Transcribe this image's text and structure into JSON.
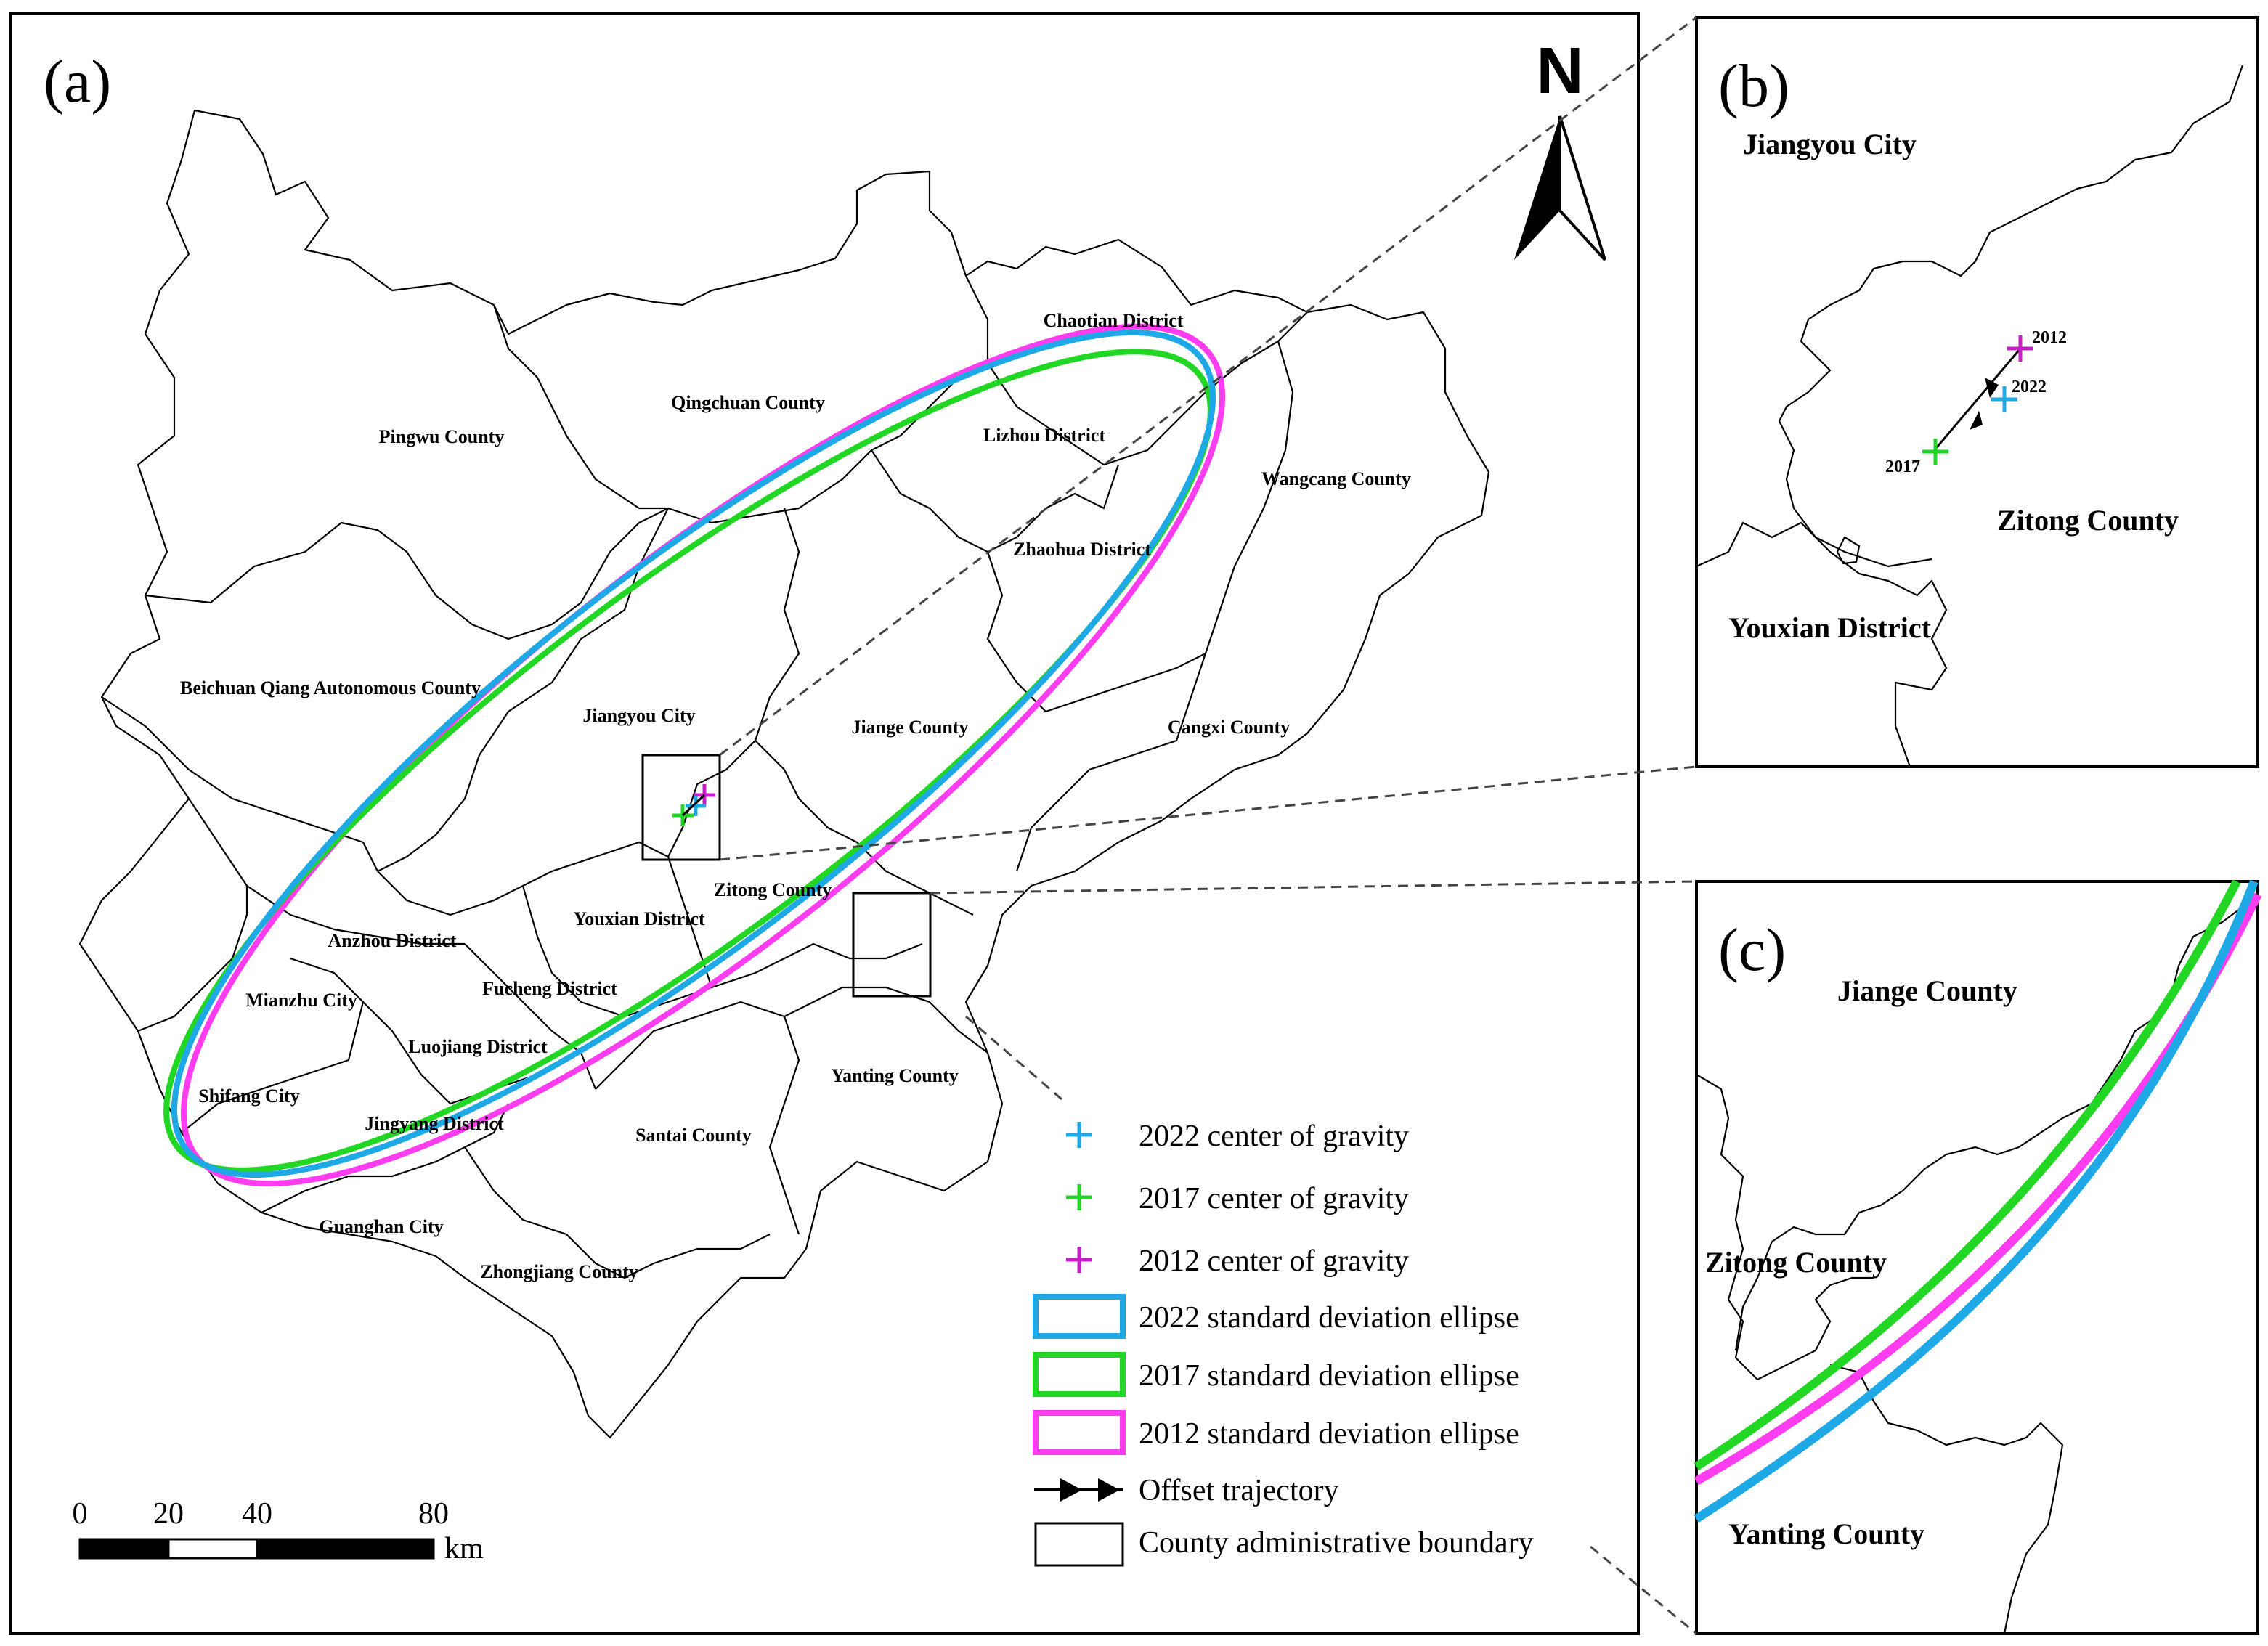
{
  "panels": {
    "a": {
      "tag": "(a)"
    },
    "b": {
      "tag": "(b)"
    },
    "c": {
      "tag": "(c)"
    }
  },
  "north_arrow": {
    "label": "N"
  },
  "counties": [
    "Pingwu County",
    "Qingchuan County",
    "Chaotian District",
    "Lizhou District",
    "Wangcang County",
    "Zhaohua District",
    "Beichuan Qiang Autonomous County",
    "Jiangyou City",
    "Jiange County",
    "Cangxi County",
    "Zitong County",
    "Youxian District",
    "Anzhou District",
    "Mianzhu City",
    "Fucheng District",
    "Luojiang District",
    "Shifang City",
    "Jingyang District",
    "Yanting County",
    "Santai County",
    "Guanghan City",
    "Zhongjiang County"
  ],
  "inset_b": {
    "labels": [
      "Jiangyou City",
      "Zitong County",
      "Youxian District"
    ],
    "years": [
      "2012",
      "2022",
      "2017"
    ]
  },
  "inset_c": {
    "labels": [
      "Jiange County",
      "Zitong County",
      "Yanting County"
    ]
  },
  "legend": [
    {
      "label": "2022 center of gravity",
      "color": "#1ea9e6",
      "symbol": "cross"
    },
    {
      "label": "2017 center of gravity",
      "color": "#22d624",
      "symbol": "cross"
    },
    {
      "label": "2012 center of gravity",
      "color": "#c81ec8",
      "symbol": "cross"
    },
    {
      "label": "2022 standard deviation ellipse",
      "color": "#1ea9e6",
      "symbol": "ellipse"
    },
    {
      "label": "2017 standard deviation ellipse",
      "color": "#22d624",
      "symbol": "ellipse"
    },
    {
      "label": "2012 standard deviation ellipse",
      "color": "#ff3cf0",
      "symbol": "ellipse"
    },
    {
      "label": "Offset trajectory",
      "color": "#000000",
      "symbol": "arrow"
    },
    {
      "label": "County administrative boundary",
      "color": "#000000",
      "symbol": "box"
    }
  ],
  "scale_bar": {
    "ticks": [
      "0",
      "20",
      "40",
      "80"
    ],
    "unit": "km"
  }
}
